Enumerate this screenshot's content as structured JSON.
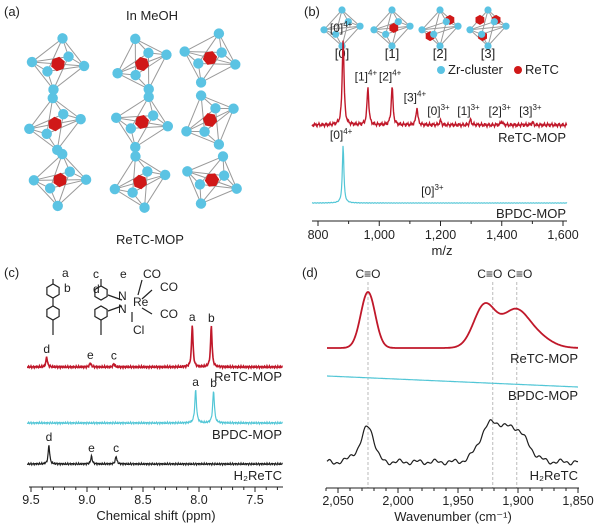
{
  "colors": {
    "retc": "#c0182a",
    "bpdc": "#52c6d6",
    "h2retc": "#1e1e1e",
    "zr": "#5bc3e3",
    "re": "#d01818",
    "edge": "#9a9a9a"
  },
  "panel_a": {
    "tag": "(a)",
    "title": "In MeOH",
    "caption": "ReTC-MOP",
    "cluster_count": 9
  },
  "chart_data": [
    {
      "panel": "(b)",
      "type": "line",
      "title": "",
      "xlabel": "m/z",
      "ylabel": "",
      "xlim": [
        780,
        1600
      ],
      "xticks": [
        800,
        1000,
        1200,
        1400,
        1600
      ],
      "xtick_labels": [
        "800",
        "1,000",
        "1,200",
        "1,400",
        "1,600"
      ],
      "grid": false,
      "inset_labels": [
        "[0]",
        "[1]",
        "[2]",
        "[3]"
      ],
      "legend": [
        {
          "name": "Zr-cluster",
          "color": "#5bc3e3"
        },
        {
          "name": "ReTC",
          "color": "#d01818"
        }
      ],
      "legend_placement": "top-right",
      "series": [
        {
          "name": "ReTC-MOP",
          "color": "#c0182a",
          "peaks": [
            {
              "x": 882,
              "y": 1.0,
              "label": "[0]",
              "charge": "4+"
            },
            {
              "x": 963,
              "y": 0.43,
              "label": "[1]",
              "charge": "4+"
            },
            {
              "x": 1042,
              "y": 0.44,
              "label": "[2]",
              "charge": "4+"
            },
            {
              "x": 1123,
              "y": 0.2,
              "label": "[3]",
              "charge": "4+"
            },
            {
              "x": 1200,
              "y": 0.05,
              "label": "[0]",
              "charge": "3+"
            },
            {
              "x": 1298,
              "y": 0.06,
              "label": "[1]",
              "charge": "3+"
            },
            {
              "x": 1400,
              "y": 0.04,
              "label": "[2]",
              "charge": "3+"
            },
            {
              "x": 1500,
              "y": 0.03,
              "label": "[3]",
              "charge": "3+"
            }
          ]
        },
        {
          "name": "BPDC-MOP",
          "color": "#52c6d6",
          "peaks": [
            {
              "x": 882,
              "y": 1.0,
              "label": "[0]",
              "charge": "4+"
            },
            {
              "x": 1180,
              "y": 0.0,
              "label": "[0]",
              "charge": "3+"
            }
          ]
        }
      ]
    },
    {
      "panel": "(c)",
      "type": "line",
      "xlabel": "Chemical shift (ppm)",
      "ylabel": "",
      "xlim": [
        9.52,
        7.3
      ],
      "xticks": [
        9.5,
        9.0,
        8.5,
        8.0,
        7.5
      ],
      "xtick_labels": [
        "9.5",
        "9.0",
        "8.5",
        "8.0",
        "7.5"
      ],
      "grid": false,
      "structure_labels": {
        "ring_a": "a",
        "ring_b": "b",
        "c": "c",
        "d": "d",
        "e": "e",
        "co1": "CO",
        "co2": "CO",
        "co3": "CO",
        "re": "Re",
        "cl": "Cl",
        "n1": "N",
        "n2": "N"
      },
      "series": [
        {
          "name": "ReTC-MOP",
          "color": "#c0182a",
          "peaks": [
            {
              "x": 9.36,
              "y": 0.24,
              "label": "d"
            },
            {
              "x": 8.97,
              "y": 0.1,
              "label": "e"
            },
            {
              "x": 8.76,
              "y": 0.08,
              "label": "c"
            },
            {
              "x": 8.06,
              "y": 1.0,
              "label": "a"
            },
            {
              "x": 7.89,
              "y": 0.98,
              "label": "b"
            }
          ]
        },
        {
          "name": "BPDC-MOP",
          "color": "#52c6d6",
          "peaks": [
            {
              "x": 8.03,
              "y": 0.8,
              "label": "a"
            },
            {
              "x": 7.87,
              "y": 0.78,
              "label": "b"
            }
          ]
        },
        {
          "name": "H₂ReTC",
          "color": "#1e1e1e",
          "peaks": [
            {
              "x": 9.34,
              "y": 0.46,
              "label": "d"
            },
            {
              "x": 8.96,
              "y": 0.19,
              "label": "e"
            },
            {
              "x": 8.74,
              "y": 0.19,
              "label": "c"
            }
          ]
        }
      ]
    },
    {
      "panel": "(d)",
      "type": "line",
      "xlabel": "Wavenumber (cm⁻¹)",
      "ylabel": "",
      "xlim": [
        2060,
        1850
      ],
      "xticks": [
        2050,
        2000,
        1950,
        1900,
        1850
      ],
      "xtick_labels": [
        "2,050",
        "2,000",
        "1,950",
        "1,900",
        "1,850"
      ],
      "grid": false,
      "annotations": [
        {
          "x": 2025,
          "text": "C≡O"
        },
        {
          "x": 1921,
          "text": "C≡O"
        },
        {
          "x": 1901,
          "text": "C≡O"
        }
      ],
      "series": [
        {
          "name": "ReTC-MOP",
          "color": "#c0182a",
          "components": [
            {
              "center": 2025,
              "height": 1.0,
              "width": 6
            },
            {
              "center": 1928,
              "height": 0.75,
              "width": 9
            },
            {
              "center": 1903,
              "height": 0.62,
              "width": 11
            },
            {
              "center": 1885,
              "height": 0.2,
              "width": 12
            }
          ]
        },
        {
          "name": "BPDC-MOP",
          "color": "#52c6d6",
          "linear": [
            0.0,
            -0.22
          ]
        },
        {
          "name": "H₂ReTC",
          "color": "#1e1e1e",
          "components": [
            {
              "center": 2025,
              "height": 0.62,
              "width": 5
            },
            {
              "center": 2037,
              "height": 0.12,
              "width": 4
            },
            {
              "center": 1923,
              "height": 0.62,
              "width": 9
            },
            {
              "center": 1902,
              "height": 0.55,
              "width": 10
            }
          ]
        }
      ]
    }
  ]
}
